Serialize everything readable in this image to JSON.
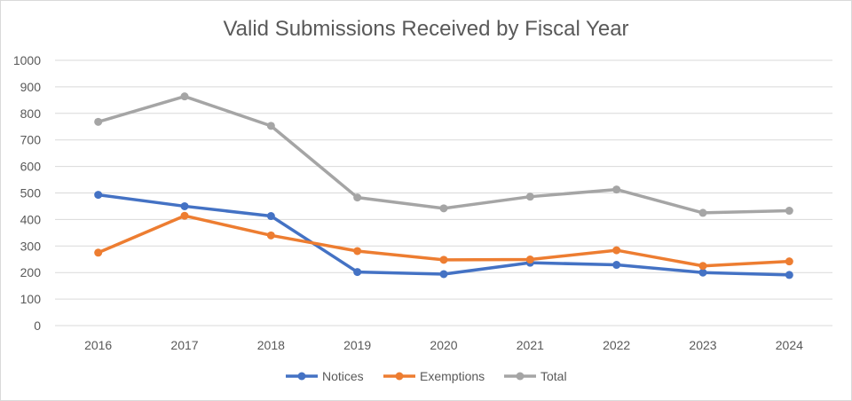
{
  "chart_data": {
    "type": "line",
    "title": "Valid Submissions Received by Fiscal Year",
    "xlabel": "",
    "ylabel": "",
    "ylim": [
      0,
      1000
    ],
    "y_ticks": [
      "0",
      "100",
      "200",
      "300",
      "400",
      "500",
      "600",
      "700",
      "800",
      "900",
      "1000"
    ],
    "categories": [
      "2016",
      "2017",
      "2018",
      "2019",
      "2020",
      "2021",
      "2022",
      "2023",
      "2024"
    ],
    "grid": true,
    "legend": "bottom",
    "series": [
      {
        "name": "Notices",
        "color": "#4472c4",
        "values": [
          493,
          450,
          413,
          202,
          194,
          237,
          229,
          200,
          191
        ]
      },
      {
        "name": "Exemptions",
        "color": "#ed7d31",
        "values": [
          275,
          414,
          340,
          281,
          248,
          249,
          284,
          225,
          242
        ]
      },
      {
        "name": "Total",
        "color": "#a5a5a5",
        "values": [
          768,
          864,
          753,
          483,
          442,
          486,
          513,
          425,
          433
        ]
      }
    ]
  }
}
